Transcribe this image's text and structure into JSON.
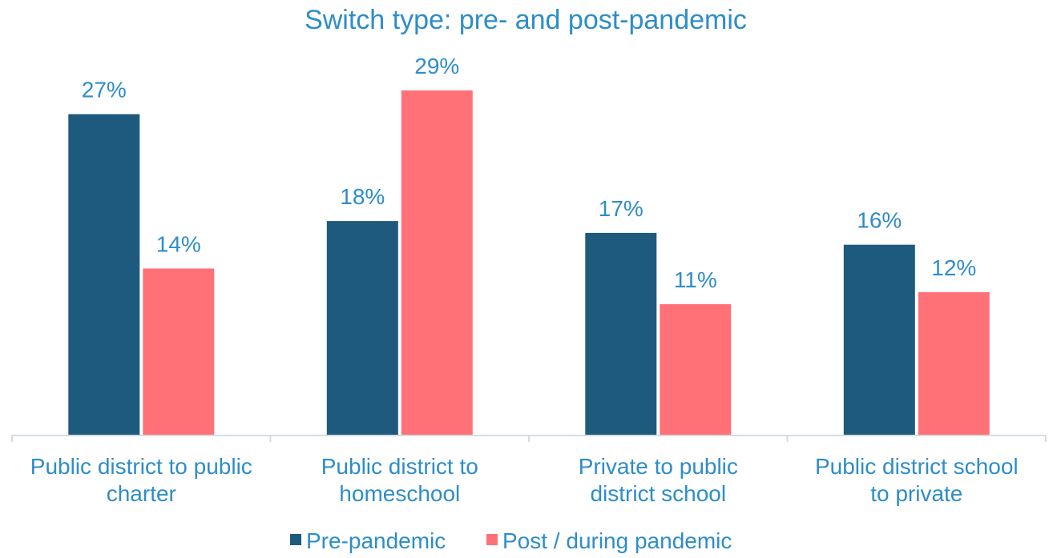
{
  "chart_data": {
    "type": "bar",
    "title": "Switch type: pre- and post-pandemic",
    "xlabel": "",
    "ylabel": "",
    "categories": [
      [
        "Public district to public",
        "charter"
      ],
      [
        "Public district to",
        "homeschool"
      ],
      [
        "Private to public",
        "district school"
      ],
      [
        "Public district school",
        "to private"
      ]
    ],
    "series": [
      {
        "name": "Pre-pandemic",
        "color": "#1E5A7D",
        "values": [
          27,
          18,
          17,
          16
        ],
        "labels": [
          "27%",
          "18%",
          "17%",
          "16%"
        ]
      },
      {
        "name": "Post / during pandemic",
        "color": "#FF7176",
        "values": [
          14,
          29,
          11,
          12
        ],
        "labels": [
          "14%",
          "29%",
          "11%",
          "12%"
        ]
      }
    ],
    "ylim": [
      0,
      31.5
    ],
    "grid": false,
    "legend_position": "bottom",
    "text_color": "#2E8DC8",
    "axis_color": "#D3DCE3"
  }
}
